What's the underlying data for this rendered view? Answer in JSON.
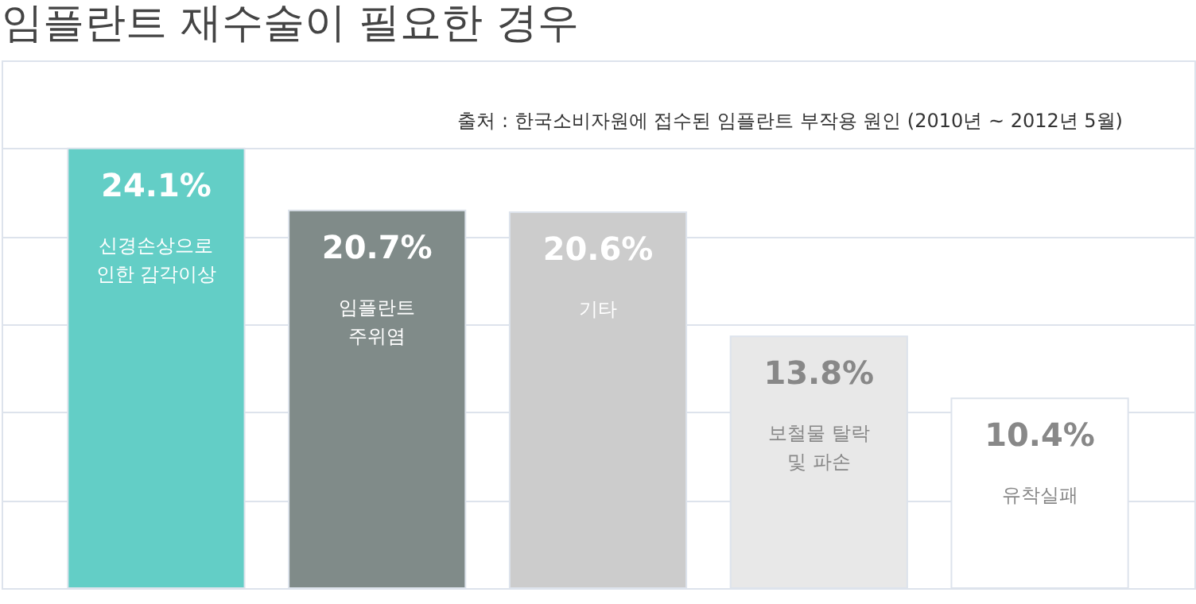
{
  "chart_data": {
    "type": "bar",
    "title": "임플란트 재수술이 필요한 경우",
    "annotations": [
      "출처 : 한국소비자원에 접수된 임플란트 부작용 원인 (2010년 ~ 2012년 5월)"
    ],
    "categories": [
      "신경손상으로 인한 감각이상",
      "임플란트 주위염",
      "기타",
      "보철물 탈락 및 파손",
      "유착실패"
    ],
    "values": [
      24.1,
      20.7,
      20.6,
      13.8,
      10.4
    ],
    "value_labels": [
      "24.1%",
      "20.7%",
      "20.6%",
      "13.8%",
      "10.4%"
    ],
    "colors": [
      "#63cec6",
      "#808b89",
      "#cccccc",
      "#e8e8e8",
      "#ffffff"
    ],
    "grid": "y"
  }
}
